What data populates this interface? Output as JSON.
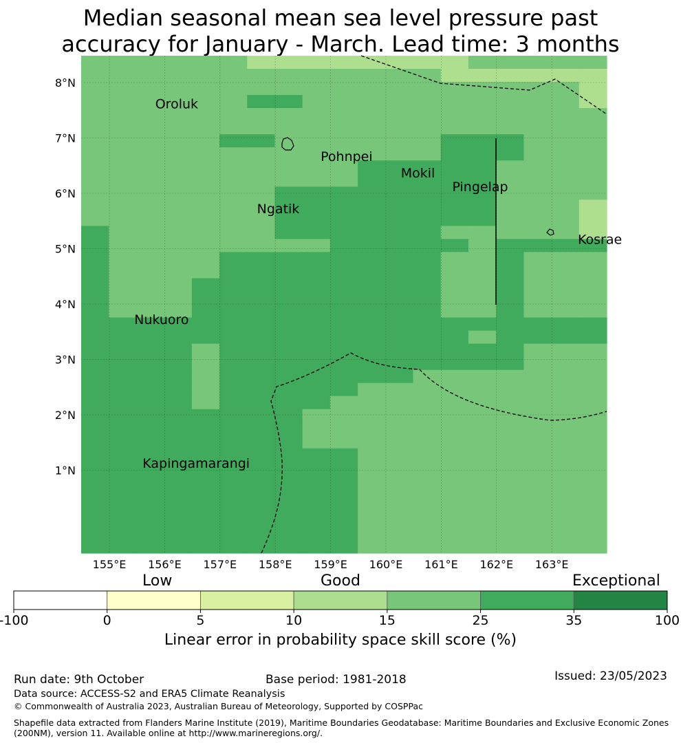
{
  "title": {
    "line1": "Median seasonal mean sea level pressure past",
    "line2": "accuracy for January - March. Lead time: 3 months"
  },
  "map": {
    "lon_labels": [
      "155°E",
      "156°E",
      "157°E",
      "158°E",
      "159°E",
      "160°E",
      "161°E",
      "162°E",
      "163°E"
    ],
    "lat_labels": [
      "8°N",
      "7°N",
      "6°N",
      "5°N",
      "4°N",
      "3°N",
      "2°N",
      "1°N"
    ],
    "places": [
      {
        "name": "Oroluk",
        "lon": 155.33,
        "lat": 7.55
      },
      {
        "name": "Pohnpei",
        "lon": 158.32,
        "lat": 6.6
      },
      {
        "name": "Mokil",
        "lon": 159.77,
        "lat": 6.3
      },
      {
        "name": "Pingelap",
        "lon": 160.7,
        "lat": 6.05
      },
      {
        "name": "Ngatik",
        "lon": 157.17,
        "lat": 5.65
      },
      {
        "name": "Kosrae",
        "lon": 162.97,
        "lat": 5.1
      },
      {
        "name": "Nukuoro",
        "lon": 154.95,
        "lat": 3.65
      },
      {
        "name": "Kapingamarangi",
        "lon": 155.1,
        "lat": 1.05
      }
    ],
    "colors": {
      "a": "#addf8e",
      "b": "#78c679",
      "c": "#41ab5d"
    },
    "grid_lat_rows": [
      "bbbbbbaaaaaaaabbbbb",
      "bbbbbbbbbbbbbaaaaaa",
      "bbbbbbbbbbbbbbbbbba",
      "bbbbbbccbbbbbbbbbba",
      "bbbbbbbbbbbbbbbbbbb",
      "bbbbbbbbbbbbbbbbbbb",
      "bbbbbccbbbbbbcccbbb",
      "bbbbbbbbbbbbbcccbbb",
      "bbbbbbbbbbcccccbbbb",
      "bbbbbbbbbbcccccbbbb",
      "bbbbbbbccccccccbbbb",
      "bbbbbbbccccccccbbba",
      "bbbbbbbccccccccbbba",
      "cbbbbbbccccccbbbbba",
      "cbbbbbbbbcccccbcccc",
      "cbbbbccccccccbbcbbb",
      "cbbbbccccccccbbcbbb",
      "cbbbcccccccccbbcbbb",
      "cbbbcccccccccbbcbbb",
      "cbbbcccccccccbbcbbb",
      "ccccccccccccccccccc",
      "ccccccccccccccbcccc",
      "ccccbcccccccccccbbb",
      "ccccbcccccccccccbbb",
      "ccccbcccccccbbbbbbb",
      "ccccbcccccbbbbbbbbb",
      "ccccbccccbbbbbbbbbb",
      "ccccccccbbbbbbbbbbb",
      "ccccccccbbbbbbbbbbb",
      "ccccccccbbbbbbbbbbb",
      "ccccccccccbbbbbbbbb",
      "ccccccccccbbbbbbbbb",
      "ccccccccccbbbbbbbbb",
      "ccccccccccbbbbbbbbb",
      "ccccccccccbbbbbbbbb",
      "ccccccccccbbbbbbbbb",
      "ccccccccccbbbbbbbbb",
      "ccccccccccbbbbbbbbb"
    ]
  },
  "colorbar": {
    "categories": [
      "Low",
      "Good",
      "Exceptional"
    ],
    "bins": [
      {
        "from": "-100",
        "to": "0",
        "color": "#ffffff"
      },
      {
        "from": "0",
        "to": "5",
        "color": "#ffffcc"
      },
      {
        "from": "5",
        "to": "10",
        "color": "#d9f0a3"
      },
      {
        "from": "10",
        "to": "15",
        "color": "#addd8e"
      },
      {
        "from": "15",
        "to": "25",
        "color": "#78c679"
      },
      {
        "from": "25",
        "to": "35",
        "color": "#41ab5d"
      },
      {
        "from": "35",
        "to": "100",
        "color": "#238443"
      }
    ],
    "ticks": [
      "-100",
      "0",
      "5",
      "10",
      "15",
      "25",
      "35",
      "100"
    ],
    "label": "Linear error in probability space skill score (%)"
  },
  "footer": {
    "run_date": "Run date: 9th October",
    "base_period": "Base period: 1981-2018",
    "issued": "Issued: 23/05/2023",
    "data_source": "Data source: ACCESS-S2 and ERA5 Climate Reanalysis",
    "copyright": "© Commonwealth of Australia 2023, Australian Bureau of Meteorology, Supported by COSPPac",
    "shapefile_line1": "Shapefile data extracted from Flanders Marine Institute (2019), Maritime Boundaries Geodatabase: Maritime Boundaries and Exclusive Economic Zones",
    "shapefile_line2": "(200NM), version 11. Available online at http://www.marineregions.org/."
  }
}
